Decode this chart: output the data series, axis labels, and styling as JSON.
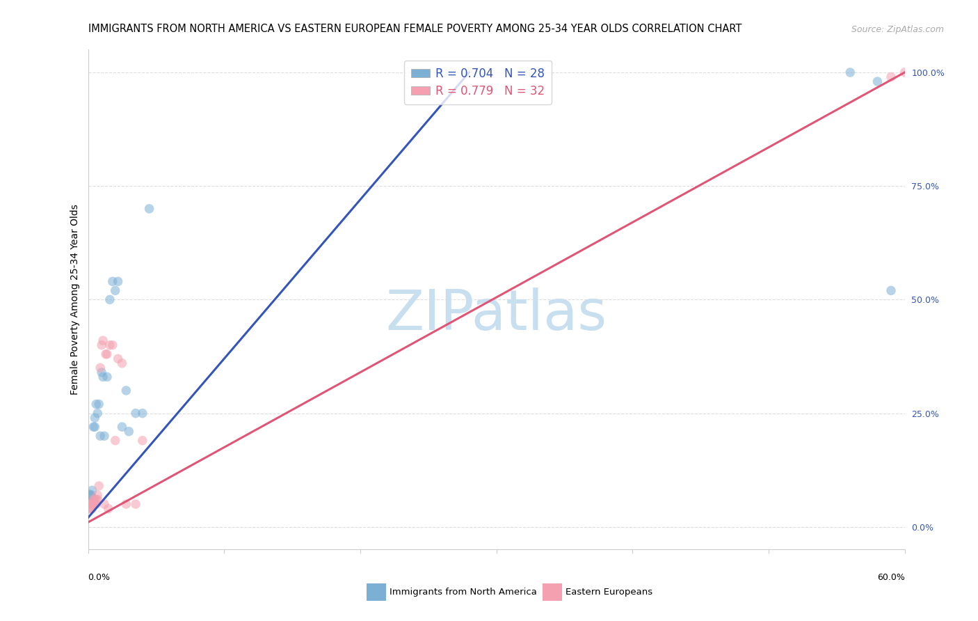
{
  "title": "IMMIGRANTS FROM NORTH AMERICA VS EASTERN EUROPEAN FEMALE POVERTY AMONG 25-34 YEAR OLDS CORRELATION CHART",
  "source": "Source: ZipAtlas.com",
  "ylabel": "Female Poverty Among 25-34 Year Olds",
  "xlim": [
    0.0,
    0.6
  ],
  "ylim": [
    -0.05,
    1.05
  ],
  "right_yticks": [
    0.0,
    0.25,
    0.5,
    0.75,
    1.0
  ],
  "right_yticklabels": [
    "0.0%",
    "25.0%",
    "50.0%",
    "75.0%",
    "100.0%"
  ],
  "blue_R": 0.704,
  "blue_N": 28,
  "pink_R": 0.779,
  "pink_N": 32,
  "blue_color": "#7BAFD4",
  "pink_color": "#F4A0B0",
  "blue_line_color": "#3355BB",
  "pink_line_color": "#E05575",
  "watermark_color": "#C8DFF0",
  "blue_line_x0": 0.0,
  "blue_line_y0": 0.02,
  "blue_line_x1": 0.28,
  "blue_line_y1": 1.0,
  "pink_line_x0": 0.0,
  "pink_line_y0": 0.01,
  "pink_line_x1": 0.6,
  "pink_line_y1": 1.0,
  "blue_x": [
    0.001,
    0.001,
    0.002,
    0.003,
    0.004,
    0.005,
    0.005,
    0.006,
    0.007,
    0.008,
    0.009,
    0.01,
    0.011,
    0.012,
    0.014,
    0.016,
    0.018,
    0.02,
    0.022,
    0.025,
    0.028,
    0.03,
    0.035,
    0.04,
    0.045,
    0.56,
    0.58,
    0.59
  ],
  "blue_y": [
    0.06,
    0.07,
    0.07,
    0.08,
    0.22,
    0.22,
    0.24,
    0.27,
    0.25,
    0.27,
    0.2,
    0.34,
    0.33,
    0.2,
    0.33,
    0.5,
    0.54,
    0.52,
    0.54,
    0.22,
    0.3,
    0.21,
    0.25,
    0.25,
    0.7,
    1.0,
    0.98,
    0.52
  ],
  "blue_sizes": [
    300,
    130,
    100,
    100,
    95,
    95,
    95,
    95,
    95,
    95,
    95,
    95,
    95,
    95,
    95,
    95,
    95,
    95,
    95,
    95,
    95,
    95,
    95,
    95,
    95,
    95,
    95,
    95
  ],
  "pink_x": [
    0.001,
    0.001,
    0.002,
    0.002,
    0.003,
    0.003,
    0.004,
    0.004,
    0.005,
    0.005,
    0.006,
    0.006,
    0.007,
    0.007,
    0.008,
    0.009,
    0.01,
    0.011,
    0.012,
    0.013,
    0.014,
    0.015,
    0.016,
    0.018,
    0.02,
    0.022,
    0.025,
    0.028,
    0.035,
    0.04,
    0.59,
    0.6
  ],
  "pink_y": [
    0.04,
    0.05,
    0.04,
    0.05,
    0.04,
    0.05,
    0.05,
    0.06,
    0.05,
    0.06,
    0.05,
    0.06,
    0.06,
    0.07,
    0.09,
    0.35,
    0.4,
    0.41,
    0.05,
    0.38,
    0.38,
    0.04,
    0.4,
    0.4,
    0.19,
    0.37,
    0.36,
    0.05,
    0.05,
    0.19,
    0.99,
    1.0
  ],
  "pink_sizes": [
    95,
    95,
    95,
    95,
    95,
    95,
    95,
    95,
    95,
    95,
    95,
    95,
    95,
    95,
    95,
    95,
    95,
    95,
    95,
    95,
    95,
    95,
    95,
    95,
    95,
    95,
    95,
    95,
    95,
    95,
    95,
    95
  ],
  "grid_color": "#DDDDDD",
  "bg_color": "#FFFFFF",
  "title_fontsize": 10.5,
  "source_fontsize": 9,
  "ylabel_fontsize": 10,
  "legend_fontsize": 12,
  "tick_fontsize": 9,
  "watermark_text": "ZIPatlas",
  "watermark_fontsize": 58,
  "bottom_labels": [
    "Immigrants from North America",
    "Eastern Europeans"
  ]
}
